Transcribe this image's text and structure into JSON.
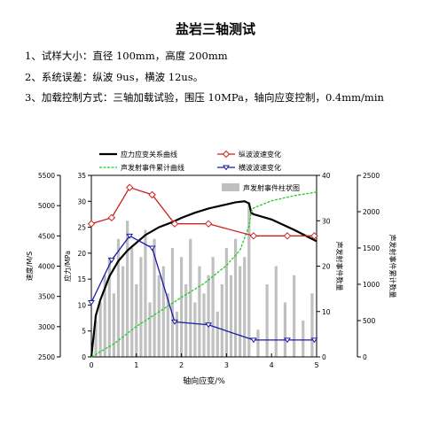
{
  "page": {
    "title": "盐岩三轴测试",
    "lines": [
      "1、试样大小：直径 100mm，高度 200mm",
      "2、系统误差：纵波 9us，横波 12us。",
      "3、加载控制方式：三轴加载试验，围压 10MPa，轴向应变控制，0.4mm/min"
    ]
  },
  "chart_data": {
    "type": "line",
    "xlabel": "轴向应变/%",
    "xlim": [
      0,
      5
    ],
    "x_ticks": [
      "0",
      "1",
      "2",
      "3",
      "4",
      "5"
    ],
    "axes": {
      "velocity": {
        "label": "速度/M/S",
        "lim": [
          2500,
          5500
        ],
        "ticks": [
          "2500",
          "3000",
          "3500",
          "4000",
          "4500",
          "5000",
          "5500"
        ]
      },
      "stress": {
        "label": "应力/MPa",
        "lim": [
          0,
          35
        ],
        "ticks": [
          "0",
          "5",
          "10",
          "15",
          "20",
          "25",
          "30",
          "35"
        ]
      },
      "ae_count": {
        "label": "声发射事件数量",
        "lim": [
          0,
          40
        ],
        "ticks": [
          "0",
          "10",
          "20",
          "30",
          "40"
        ]
      },
      "ae_cumulative": {
        "label": "声发射事件累计数量",
        "lim": [
          0,
          2500
        ],
        "ticks": [
          "0",
          "500",
          "1000",
          "1500",
          "2000",
          "2500"
        ]
      }
    },
    "series": [
      {
        "name": "应力应变关系曲线",
        "axis": "stress",
        "color": "#000000",
        "x": [
          0,
          0.1,
          0.2,
          0.4,
          0.6,
          0.8,
          1.0,
          1.2,
          1.5,
          1.8,
          2.0,
          2.3,
          2.6,
          2.9,
          3.2,
          3.4,
          3.5,
          3.55,
          3.6,
          4.0,
          4.5,
          5.0
        ],
        "y": [
          0,
          8,
          11,
          15.5,
          18.5,
          20.5,
          22,
          23.5,
          25,
          26,
          26.8,
          27.8,
          28.6,
          29.2,
          29.8,
          30,
          29.6,
          27.8,
          27.5,
          26.5,
          24.5,
          22.3
        ]
      },
      {
        "name": "声发射事件累计曲线",
        "axis": "ae_cumulative",
        "color": "#22cc22",
        "x": [
          0,
          0.5,
          1.0,
          1.5,
          2.0,
          2.5,
          3.0,
          3.3,
          3.5,
          3.55,
          3.6,
          4.0,
          4.5,
          5.0
        ],
        "y": [
          0,
          180,
          420,
          620,
          820,
          1010,
          1260,
          1470,
          1800,
          2000,
          2050,
          2150,
          2220,
          2270
        ]
      },
      {
        "name": "纵波波速变化",
        "axis": "velocity",
        "color": "#cc2222",
        "x": [
          0,
          0.45,
          0.85,
          1.35,
          1.85,
          2.6,
          3.6,
          4.35,
          4.95
        ],
        "y": [
          4700,
          4800,
          5300,
          5180,
          4700,
          4700,
          4500,
          4500,
          4500
        ]
      },
      {
        "name": "横波波速变化",
        "axis": "velocity",
        "color": "#1a1aa8",
        "x": [
          0,
          0.45,
          0.85,
          1.35,
          1.85,
          2.6,
          3.6,
          4.35,
          4.95
        ],
        "y": [
          3400,
          4100,
          4500,
          4300,
          3080,
          3030,
          2780,
          2780,
          2780
        ]
      }
    ],
    "bars": {
      "name": "声发射事件柱状图",
      "axis": "ae_count",
      "color": "#c0c0c0",
      "x": [
        0.1,
        0.2,
        0.3,
        0.4,
        0.5,
        0.6,
        0.7,
        0.8,
        0.9,
        1.0,
        1.1,
        1.2,
        1.3,
        1.4,
        1.5,
        1.6,
        1.7,
        1.8,
        1.9,
        2.0,
        2.1,
        2.2,
        2.3,
        2.4,
        2.5,
        2.6,
        2.7,
        2.8,
        2.9,
        3.0,
        3.1,
        3.2,
        3.3,
        3.4,
        3.5,
        3.7,
        3.9,
        4.1,
        4.3,
        4.5,
        4.7,
        4.9
      ],
      "values": [
        8,
        12,
        18,
        22,
        14,
        26,
        20,
        30,
        24,
        16,
        22,
        28,
        12,
        26,
        18,
        20,
        14,
        24,
        10,
        22,
        16,
        26,
        12,
        20,
        14,
        18,
        22,
        10,
        16,
        24,
        18,
        26,
        20,
        22,
        34,
        6,
        16,
        20,
        12,
        18,
        8,
        14
      ]
    },
    "legend": [
      {
        "label": "应力应变关系曲线",
        "series": 0
      },
      {
        "label": "纵波波速变化",
        "series": 2
      },
      {
        "label": "声发射事件累计曲线",
        "series": 1
      },
      {
        "label": "横波波速变化",
        "series": 3
      }
    ],
    "bar_legend": "声发射事件柱状图"
  }
}
